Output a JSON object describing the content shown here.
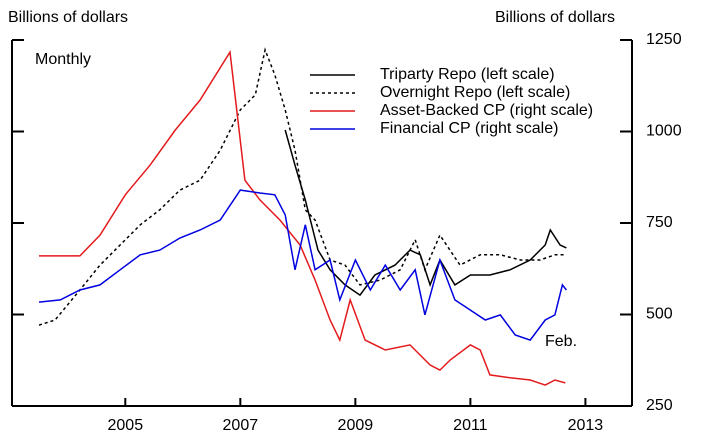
{
  "chart_data": {
    "type": "line",
    "y_label_left": "Billions of dollars",
    "y_label_right": "Billions of dollars",
    "annotations": [
      "Monthly",
      "Feb."
    ],
    "xlim": [
      2003.53,
      2014.31
    ],
    "xticks": [
      {
        "value": 2005.5,
        "label": "2005"
      },
      {
        "value": 2007.5,
        "label": "2007"
      },
      {
        "value": 2009.5,
        "label": "2009"
      },
      {
        "value": 2011.5,
        "label": "2011"
      },
      {
        "value": 2013.5,
        "label": "2013"
      }
    ],
    "ylim": [
      250,
      1250
    ],
    "yticks": [
      250,
      500,
      750,
      1000,
      1250
    ],
    "legend": "upper right",
    "series": [
      {
        "name": "Triparty Repo (left scale)",
        "color": "#000000",
        "style": "solid",
        "x": [
          2008.28,
          2008.45,
          2008.63,
          2008.85,
          2009.06,
          2009.32,
          2009.58,
          2009.84,
          2010.19,
          2010.45,
          2010.63,
          2010.8,
          2010.97,
          2011.23,
          2011.5,
          2011.84,
          2012.19,
          2012.54,
          2012.8,
          2012.89,
          2013.06,
          2013.17
        ],
        "values": [
          1004,
          908,
          813,
          676,
          622,
          581,
          553,
          608,
          635,
          676,
          663,
          581,
          649,
          581,
          608,
          608,
          622,
          649,
          690,
          731,
          690,
          682
        ]
      },
      {
        "name": "Overnight Repo (left scale)",
        "color": "#000000",
        "style": "dotted",
        "x": [
          2004.0,
          2004.28,
          2004.71,
          2005.06,
          2005.41,
          2005.76,
          2006.1,
          2006.45,
          2006.8,
          2007.15,
          2007.5,
          2007.76,
          2007.93,
          2008.1,
          2008.28,
          2008.45,
          2008.63,
          2008.8,
          2009.06,
          2009.32,
          2009.58,
          2009.93,
          2010.28,
          2010.54,
          2010.71,
          2010.97,
          2011.32,
          2011.67,
          2012.02,
          2012.37,
          2012.71,
          2012.97,
          2013.17
        ],
        "values": [
          471,
          485,
          567,
          635,
          690,
          745,
          786,
          840,
          867,
          949,
          1059,
          1100,
          1223,
          1155,
          1059,
          949,
          786,
          758,
          649,
          635,
          581,
          594,
          622,
          704,
          622,
          717,
          635,
          663,
          663,
          649,
          649,
          663,
          663
        ]
      },
      {
        "name": "Asset-Backed CP (right scale)",
        "color": "#e41a1c",
        "style": "solid",
        "x": [
          2004.0,
          2004.71,
          2005.06,
          2005.5,
          2005.93,
          2006.37,
          2006.8,
          2007.32,
          2007.58,
          2007.84,
          2008.19,
          2008.54,
          2008.8,
          2009.06,
          2009.23,
          2009.41,
          2009.67,
          2010.02,
          2010.45,
          2010.8,
          2010.97,
          2011.15,
          2011.5,
          2011.67,
          2011.84,
          2012.19,
          2012.54,
          2012.8,
          2012.97,
          2013.15
        ],
        "values": [
          660,
          660,
          717,
          827,
          908,
          1004,
          1086,
          1217,
          867,
          813,
          758,
          690,
          594,
          485,
          430,
          540,
          430,
          403,
          417,
          362,
          348,
          376,
          417,
          403,
          335,
          327,
          321,
          307,
          321,
          313
        ]
      },
      {
        "name": "Financial CP (right scale)",
        "color": "#0000e0",
        "style": "solid",
        "x": [
          2004.0,
          2004.37,
          2004.71,
          2005.06,
          2005.41,
          2005.76,
          2006.1,
          2006.45,
          2006.8,
          2007.15,
          2007.5,
          2007.84,
          2008.1,
          2008.28,
          2008.45,
          2008.63,
          2008.8,
          2009.06,
          2009.23,
          2009.5,
          2009.76,
          2010.02,
          2010.28,
          2010.54,
          2010.71,
          2010.97,
          2011.23,
          2011.5,
          2011.76,
          2012.02,
          2012.28,
          2012.54,
          2012.8,
          2012.97,
          2013.1,
          2013.17
        ],
        "values": [
          534,
          540,
          567,
          581,
          622,
          663,
          676,
          709,
          731,
          758,
          840,
          832,
          827,
          772,
          622,
          745,
          622,
          649,
          540,
          649,
          567,
          635,
          567,
          622,
          499,
          649,
          540,
          512,
          485,
          499,
          444,
          430,
          485,
          499,
          581,
          567
        ]
      }
    ]
  }
}
